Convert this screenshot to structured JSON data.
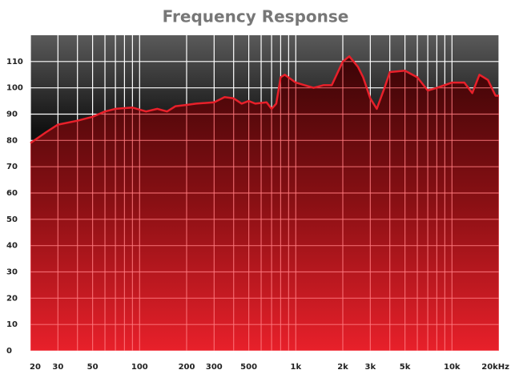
{
  "chart_data": {
    "type": "area",
    "title": "Frequency Response",
    "x": [
      20,
      25,
      30,
      40,
      50,
      60,
      70,
      90,
      110,
      130,
      150,
      170,
      200,
      230,
      300,
      350,
      400,
      450,
      500,
      550,
      650,
      700,
      750,
      800,
      850,
      1000,
      1300,
      1500,
      1700,
      2000,
      2200,
      2500,
      2700,
      3000,
      3300,
      3700,
      4000,
      5000,
      6000,
      7000,
      8000,
      10000,
      12000,
      13500,
      15000,
      17000,
      19000,
      20000
    ],
    "values": [
      79,
      83,
      86,
      87.5,
      89,
      91,
      92,
      92.5,
      91,
      92,
      91,
      93,
      93.5,
      94,
      94.5,
      96.5,
      96,
      94,
      95,
      94,
      94.5,
      92,
      94,
      104,
      105,
      102,
      100,
      101,
      101,
      110,
      112,
      108,
      104,
      96,
      92,
      100,
      106,
      106.5,
      104,
      99,
      100,
      102,
      102,
      98,
      105,
      103,
      97,
      97
    ],
    "color": "#e8202a",
    "xscale": "log",
    "xlim": [
      20,
      20000
    ],
    "xticks": [
      20,
      30,
      50,
      100,
      200,
      300,
      500,
      {
        "value": 1000,
        "label": "1k"
      },
      {
        "value": 2000,
        "label": "2k"
      },
      {
        "value": 3000,
        "label": "3k"
      },
      {
        "value": 5000,
        "label": "5k"
      },
      {
        "value": 10000,
        "label": "10k"
      },
      {
        "value": 20000,
        "label": "20kHz"
      }
    ],
    "xminorticks": [
      40,
      60,
      70,
      80,
      90,
      400,
      600,
      700,
      800,
      900,
      4000,
      6000,
      7000,
      8000,
      9000
    ],
    "ylim": [
      0,
      120
    ],
    "yticks": [
      0,
      10,
      20,
      30,
      40,
      50,
      60,
      70,
      80,
      90,
      100,
      110
    ],
    "grid": true
  }
}
